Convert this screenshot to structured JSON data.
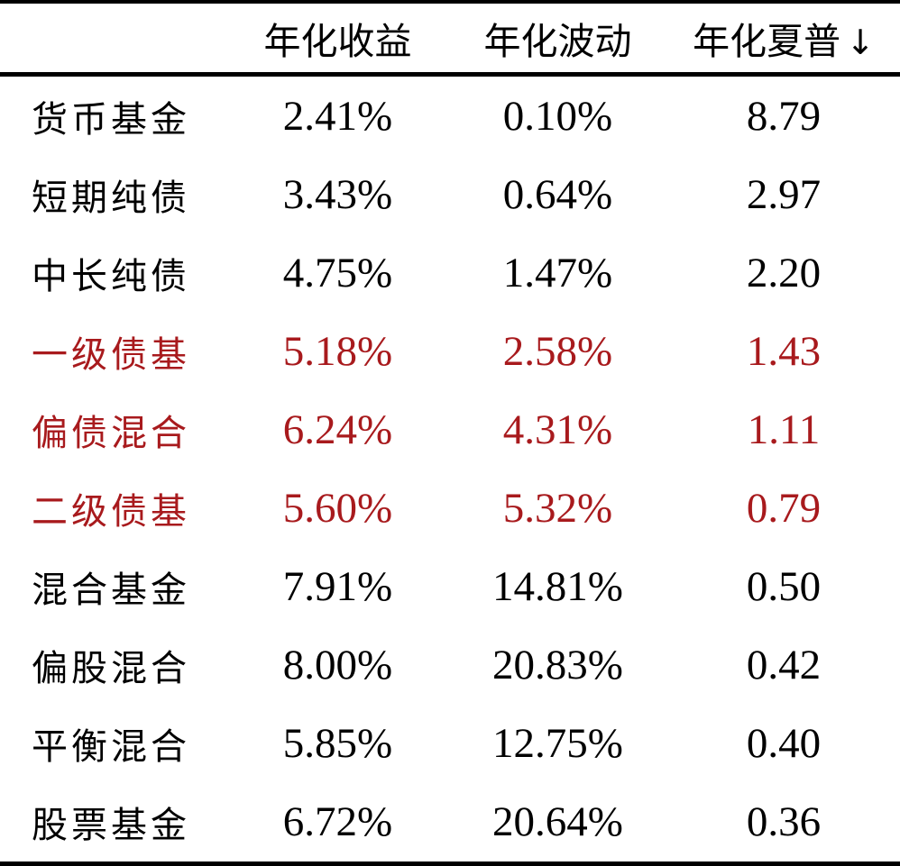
{
  "table": {
    "colors": {
      "highlight_red": "#a81a1d",
      "text_black": "#000000",
      "rule_black": "#000000",
      "background": "#ffffff"
    },
    "columns": [
      {
        "label": "年化收益"
      },
      {
        "label": "年化波动"
      },
      {
        "label": "年化夏普"
      }
    ],
    "sort_icon": "↓",
    "rows": [
      {
        "label": "货币基金",
        "annual_return": "2.41%",
        "annual_volatility": "0.10%",
        "annual_sharpe": "8.79",
        "highlight": false
      },
      {
        "label": "短期纯债",
        "annual_return": "3.43%",
        "annual_volatility": "0.64%",
        "annual_sharpe": "2.97",
        "highlight": false
      },
      {
        "label": "中长纯债",
        "annual_return": "4.75%",
        "annual_volatility": "1.47%",
        "annual_sharpe": "2.20",
        "highlight": false
      },
      {
        "label": "一级债基",
        "annual_return": "5.18%",
        "annual_volatility": "2.58%",
        "annual_sharpe": "1.43",
        "highlight": true
      },
      {
        "label": "偏债混合",
        "annual_return": "6.24%",
        "annual_volatility": "4.31%",
        "annual_sharpe": "1.11",
        "highlight": true
      },
      {
        "label": "二级债基",
        "annual_return": "5.60%",
        "annual_volatility": "5.32%",
        "annual_sharpe": "0.79",
        "highlight": true
      },
      {
        "label": "混合基金",
        "annual_return": "7.91%",
        "annual_volatility": "14.81%",
        "annual_sharpe": "0.50",
        "highlight": false
      },
      {
        "label": "偏股混合",
        "annual_return": "8.00%",
        "annual_volatility": "20.83%",
        "annual_sharpe": "0.42",
        "highlight": false
      },
      {
        "label": "平衡混合",
        "annual_return": "5.85%",
        "annual_volatility": "12.75%",
        "annual_sharpe": "0.40",
        "highlight": false
      },
      {
        "label": "股票基金",
        "annual_return": "6.72%",
        "annual_volatility": "20.64%",
        "annual_sharpe": "0.36",
        "highlight": false
      }
    ]
  },
  "chart_data": {
    "type": "table",
    "title": "",
    "columns": [
      "年化收益",
      "年化波动",
      "年化夏普↓"
    ],
    "categories": [
      "货币基金",
      "短期纯债",
      "中长纯债",
      "一级债基",
      "偏债混合",
      "二级债基",
      "混合基金",
      "偏股混合",
      "平衡混合",
      "股票基金"
    ],
    "series": [
      {
        "name": "年化收益(%)",
        "values": [
          2.41,
          3.43,
          4.75,
          5.18,
          6.24,
          5.6,
          7.91,
          8.0,
          5.85,
          6.72
        ]
      },
      {
        "name": "年化波动(%)",
        "values": [
          0.1,
          0.64,
          1.47,
          2.58,
          4.31,
          5.32,
          14.81,
          20.83,
          12.75,
          20.64
        ]
      },
      {
        "name": "年化夏普",
        "values": [
          8.79,
          2.97,
          2.2,
          1.43,
          1.11,
          0.79,
          0.5,
          0.42,
          0.4,
          0.36
        ]
      }
    ],
    "highlighted_categories": [
      "一级债基",
      "偏债混合",
      "二级债基"
    ],
    "sort": "年化夏普 descending",
    "legend_position": "none",
    "grid": false
  }
}
